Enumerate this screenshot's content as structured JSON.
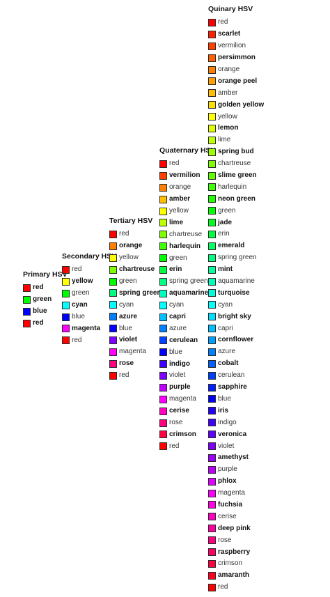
{
  "columns": [
    {
      "title": "Primary HSV",
      "items": [
        {
          "name": "red",
          "color": "#FF0000",
          "bold": true
        },
        {
          "name": "green",
          "color": "#00FF00",
          "bold": true
        },
        {
          "name": "blue",
          "color": "#0000FF",
          "bold": true
        },
        {
          "name": "red",
          "color": "#FF0000",
          "bold": true
        }
      ]
    },
    {
      "title": "Secondary HSV",
      "items": [
        {
          "name": "red",
          "color": "#FF0000",
          "bold": false
        },
        {
          "name": "yellow",
          "color": "#FFFF00",
          "bold": true
        },
        {
          "name": "green",
          "color": "#00FF00",
          "bold": false
        },
        {
          "name": "cyan",
          "color": "#00FFFF",
          "bold": true
        },
        {
          "name": "blue",
          "color": "#0000FF",
          "bold": false
        },
        {
          "name": "magenta",
          "color": "#FF00FF",
          "bold": true
        },
        {
          "name": "red",
          "color": "#FF0000",
          "bold": false
        }
      ]
    },
    {
      "title": "Tertiary HSV",
      "items": [
        {
          "name": "red",
          "color": "#FF0000",
          "bold": false
        },
        {
          "name": "orange",
          "color": "#FF8000",
          "bold": true
        },
        {
          "name": "yellow",
          "color": "#FFFF00",
          "bold": false
        },
        {
          "name": "chartreuse",
          "color": "#80FF00",
          "bold": true
        },
        {
          "name": "green",
          "color": "#00FF00",
          "bold": false
        },
        {
          "name": "spring green",
          "color": "#00FF80",
          "bold": true
        },
        {
          "name": "cyan",
          "color": "#00FFFF",
          "bold": false
        },
        {
          "name": "azure",
          "color": "#0080FF",
          "bold": true
        },
        {
          "name": "blue",
          "color": "#0000FF",
          "bold": false
        },
        {
          "name": "violet",
          "color": "#8000FF",
          "bold": true
        },
        {
          "name": "magenta",
          "color": "#FF00FF",
          "bold": false
        },
        {
          "name": "rose",
          "color": "#FF0080",
          "bold": true
        },
        {
          "name": "red",
          "color": "#FF0000",
          "bold": false
        }
      ]
    },
    {
      "title": "Quaternary HSV",
      "items": [
        {
          "name": "red",
          "color": "#FF0000",
          "bold": false
        },
        {
          "name": "vermilion",
          "color": "#FF4000",
          "bold": true
        },
        {
          "name": "orange",
          "color": "#FF8000",
          "bold": false
        },
        {
          "name": "amber",
          "color": "#FFBF00",
          "bold": true
        },
        {
          "name": "yellow",
          "color": "#FFFF00",
          "bold": false
        },
        {
          "name": "lime",
          "color": "#BFFF00",
          "bold": true
        },
        {
          "name": "chartreuse",
          "color": "#80FF00",
          "bold": false
        },
        {
          "name": "harlequin",
          "color": "#40FF00",
          "bold": true
        },
        {
          "name": "green",
          "color": "#00FF00",
          "bold": false
        },
        {
          "name": "erin",
          "color": "#00FF40",
          "bold": true
        },
        {
          "name": "spring green",
          "color": "#00FF80",
          "bold": false
        },
        {
          "name": "aquamarine",
          "color": "#00FFBF",
          "bold": true
        },
        {
          "name": "cyan",
          "color": "#00FFFF",
          "bold": false
        },
        {
          "name": "capri",
          "color": "#00BFFF",
          "bold": true
        },
        {
          "name": "azure",
          "color": "#0080FF",
          "bold": false
        },
        {
          "name": "cerulean",
          "color": "#0040FF",
          "bold": true
        },
        {
          "name": "blue",
          "color": "#0000FF",
          "bold": false
        },
        {
          "name": "indigo",
          "color": "#4000FF",
          "bold": true
        },
        {
          "name": "violet",
          "color": "#8000FF",
          "bold": false
        },
        {
          "name": "purple",
          "color": "#BF00FF",
          "bold": true
        },
        {
          "name": "magenta",
          "color": "#FF00FF",
          "bold": false
        },
        {
          "name": "cerise",
          "color": "#FF00BF",
          "bold": true
        },
        {
          "name": "rose",
          "color": "#FF0080",
          "bold": false
        },
        {
          "name": "crimson",
          "color": "#FF0040",
          "bold": true
        },
        {
          "name": "red",
          "color": "#FF0000",
          "bold": false
        }
      ]
    },
    {
      "title": "Quinary HSV",
      "items": [
        {
          "name": "red",
          "color": "#FF0000",
          "bold": false
        },
        {
          "name": "scarlet",
          "color": "#FF2000",
          "bold": true
        },
        {
          "name": "vermilion",
          "color": "#FF4000",
          "bold": false
        },
        {
          "name": "persimmon",
          "color": "#FF6000",
          "bold": true
        },
        {
          "name": "orange",
          "color": "#FF8000",
          "bold": false
        },
        {
          "name": "orange peel",
          "color": "#FF9F00",
          "bold": true
        },
        {
          "name": "amber",
          "color": "#FFBF00",
          "bold": false
        },
        {
          "name": "golden yellow",
          "color": "#FFDF00",
          "bold": true
        },
        {
          "name": "yellow",
          "color": "#FFFF00",
          "bold": false
        },
        {
          "name": "lemon",
          "color": "#DFFF00",
          "bold": true
        },
        {
          "name": "lime",
          "color": "#BFFF00",
          "bold": false
        },
        {
          "name": "spring bud",
          "color": "#9FFF00",
          "bold": true
        },
        {
          "name": "chartreuse",
          "color": "#80FF00",
          "bold": false
        },
        {
          "name": "slime green",
          "color": "#60FF00",
          "bold": true
        },
        {
          "name": "harlequin",
          "color": "#40FF00",
          "bold": false
        },
        {
          "name": "neon green",
          "color": "#20FF00",
          "bold": true
        },
        {
          "name": "green",
          "color": "#00FF00",
          "bold": false
        },
        {
          "name": "jade",
          "color": "#00FF20",
          "bold": true
        },
        {
          "name": "erin",
          "color": "#00FF40",
          "bold": false
        },
        {
          "name": "emerald",
          "color": "#00FF60",
          "bold": true
        },
        {
          "name": "spring green",
          "color": "#00FF80",
          "bold": false
        },
        {
          "name": "mint",
          "color": "#00FF9F",
          "bold": true
        },
        {
          "name": "aquamarine",
          "color": "#00FFBF",
          "bold": false
        },
        {
          "name": "turquoise",
          "color": "#00FFDF",
          "bold": true
        },
        {
          "name": "cyan",
          "color": "#00FFFF",
          "bold": false
        },
        {
          "name": "bright sky",
          "color": "#00DFFF",
          "bold": true
        },
        {
          "name": "capri",
          "color": "#00BFFF",
          "bold": false
        },
        {
          "name": "cornflower",
          "color": "#009FFF",
          "bold": true
        },
        {
          "name": "azure",
          "color": "#0080FF",
          "bold": false
        },
        {
          "name": "cobalt",
          "color": "#0060FF",
          "bold": true
        },
        {
          "name": "cerulean",
          "color": "#0040FF",
          "bold": false
        },
        {
          "name": "sapphire",
          "color": "#0020FF",
          "bold": true
        },
        {
          "name": "blue",
          "color": "#0000FF",
          "bold": false
        },
        {
          "name": "iris",
          "color": "#2000FF",
          "bold": true
        },
        {
          "name": "indigo",
          "color": "#4000FF",
          "bold": false
        },
        {
          "name": "veronica",
          "color": "#6000FF",
          "bold": true
        },
        {
          "name": "violet",
          "color": "#8000FF",
          "bold": false
        },
        {
          "name": "amethyst",
          "color": "#9F00FF",
          "bold": true
        },
        {
          "name": "purple",
          "color": "#BF00FF",
          "bold": false
        },
        {
          "name": "phlox",
          "color": "#DF00FF",
          "bold": true
        },
        {
          "name": "magenta",
          "color": "#FF00FF",
          "bold": false
        },
        {
          "name": "fuchsia",
          "color": "#FF00DF",
          "bold": true
        },
        {
          "name": "cerise",
          "color": "#FF00BF",
          "bold": false
        },
        {
          "name": "deep pink",
          "color": "#FF009F",
          "bold": true
        },
        {
          "name": "rose",
          "color": "#FF0080",
          "bold": false
        },
        {
          "name": "raspberry",
          "color": "#FF0060",
          "bold": true
        },
        {
          "name": "crimson",
          "color": "#FF0040",
          "bold": false
        },
        {
          "name": "amaranth",
          "color": "#FF0020",
          "bold": true
        },
        {
          "name": "red",
          "color": "#FF0000",
          "bold": false
        }
      ]
    }
  ]
}
